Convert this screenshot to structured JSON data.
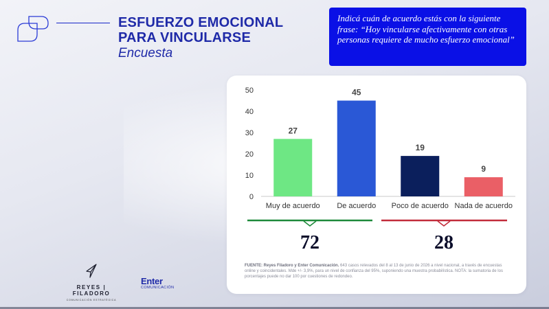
{
  "header": {
    "title": "ESFUERZO EMOCIONAL PARA VINCULARSE",
    "subtitle": "Encuesta"
  },
  "question": {
    "text": "Indicá cuán de acuerdo estás con la siguiente frase: “Hoy vincularse afectivamente con otras personas requiere de mucho esfuerzo emocional”"
  },
  "chart_data": {
    "type": "bar",
    "categories": [
      "Muy de acuerdo",
      "De acuerdo",
      "Poco de acuerdo",
      "Nada de acuerdo"
    ],
    "values": [
      27,
      45,
      19,
      9
    ],
    "colors": [
      "#6ee784",
      "#2a58d6",
      "#0b1f5c",
      "#ea5f66"
    ],
    "ylim": [
      0,
      50
    ],
    "yticks": [
      0,
      10,
      20,
      30,
      40,
      50
    ],
    "grid": false,
    "data_labels": true
  },
  "groups": [
    {
      "total": "72",
      "color": "#1e8a3a"
    },
    {
      "total": "28",
      "color": "#c22c3a"
    }
  ],
  "footnote": {
    "source_label": "FUENTE: Reyes Filadoro y Enter Comunicación.",
    "text": " 643 casos relevados del 8 al 13 de junio de 2026 a nivel nacional, a través de encuestas online y coincidentales. Mde +/- 3,9%, para un nivel de confianza del 95%, suponiendo una muestra probabilística. NOTA: la sumatoria de los porcentajes puede no dar 100 por cuestiones de redondeo."
  },
  "brands": {
    "reyes_name": "REYES | FILADORO",
    "reyes_sub": "COMUNICACIÓN ESTRATÉGICA",
    "enter_name": "Enter",
    "enter_sub": "COMUNICACIÓN"
  }
}
